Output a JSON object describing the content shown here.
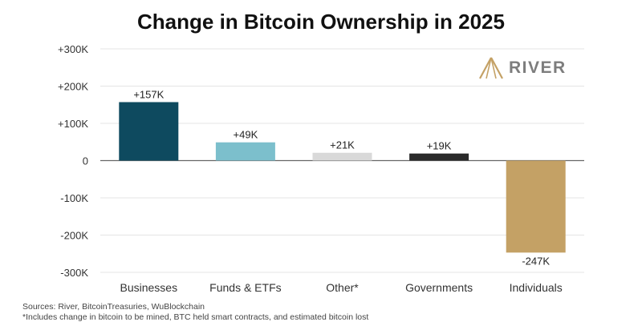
{
  "chart_data": {
    "type": "bar",
    "title": "Change in Bitcoin Ownership in 2025",
    "categories": [
      "Businesses",
      "Funds & ETFs",
      "Other*",
      "Governments",
      "Individuals"
    ],
    "values": [
      157000,
      49000,
      21000,
      19000,
      -247000
    ],
    "value_labels": [
      "+157K",
      "+49K",
      "+21K",
      "+19K",
      "-247K"
    ],
    "colors": [
      "#0e4a5f",
      "#7cbfcc",
      "#d9d9d9",
      "#2b2b2b",
      "#c4a165"
    ],
    "ylim": [
      -300000,
      300000
    ],
    "yticks": [
      300000,
      200000,
      100000,
      0,
      -100000,
      -200000,
      -300000
    ],
    "ytick_labels": [
      "+300K",
      "+200K",
      "+100K",
      "0",
      "-100K",
      "-200K",
      "-300K"
    ],
    "grid": true,
    "xlabel": "",
    "ylabel": ""
  },
  "brand": {
    "name": "RIVER",
    "icon": "river-mountain-icon",
    "color": "#c4a165"
  },
  "footer": {
    "sources": "Sources: River, BitcoinTreasuries, WuBlockchain",
    "note": "*Includes change in bitcoin to be mined, BTC held smart contracts, and estimated bitcoin lost"
  }
}
